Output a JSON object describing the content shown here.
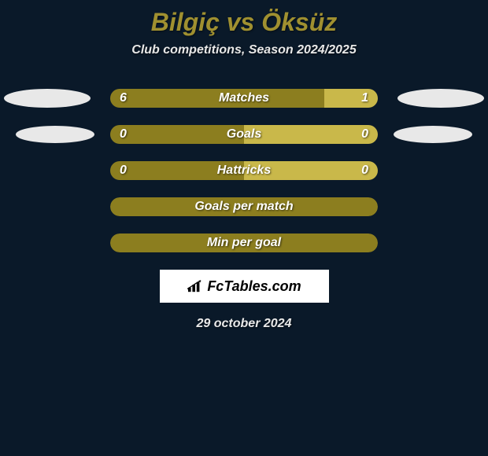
{
  "title": "Bilgiç vs Öksüz",
  "subtitle": "Club competitions, Season 2024/2025",
  "date": "29 october 2024",
  "logo_text": "FcTables.com",
  "colors": {
    "background": "#0a1929",
    "title_color": "#a09030",
    "text_color": "#e8e8e8",
    "left_bar": "#8c7e1f",
    "right_bar": "#c9b84a",
    "avatar": "#e8e8e8",
    "logo_bg": "#ffffff"
  },
  "rows": [
    {
      "label": "Matches",
      "left_value": "6",
      "right_value": "1",
      "left_pct": 80,
      "right_pct": 20,
      "left_color": "#8c7e1f",
      "right_color": "#c9b84a",
      "show_left_avatar": true,
      "show_right_avatar": true,
      "avatar_size": 1
    },
    {
      "label": "Goals",
      "left_value": "0",
      "right_value": "0",
      "left_pct": 50,
      "right_pct": 50,
      "left_color": "#8c7e1f",
      "right_color": "#c9b84a",
      "show_left_avatar": true,
      "show_right_avatar": true,
      "avatar_size": 2
    },
    {
      "label": "Hattricks",
      "left_value": "0",
      "right_value": "0",
      "left_pct": 50,
      "right_pct": 50,
      "left_color": "#8c7e1f",
      "right_color": "#c9b84a",
      "show_left_avatar": false,
      "show_right_avatar": false
    },
    {
      "label": "Goals per match",
      "full_color": "#8c7e1f",
      "show_left_avatar": false,
      "show_right_avatar": false
    },
    {
      "label": "Min per goal",
      "full_color": "#8c7e1f",
      "show_left_avatar": false,
      "show_right_avatar": false
    }
  ]
}
